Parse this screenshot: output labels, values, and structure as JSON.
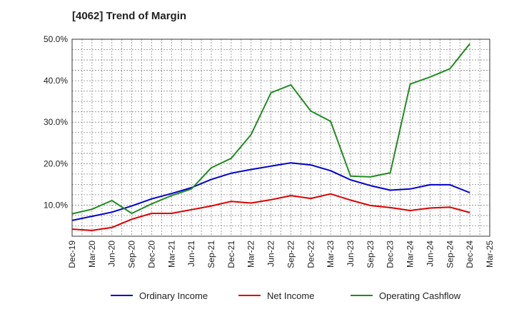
{
  "chart_data": {
    "type": "line",
    "title": "[4062]  Trend of Margin",
    "xlabel": "",
    "ylabel": "",
    "categories": [
      "Dec-19",
      "Mar-20",
      "Jun-20",
      "Sep-20",
      "Dec-20",
      "Mar-21",
      "Jun-21",
      "Sep-21",
      "Dec-21",
      "Mar-22",
      "Jun-22",
      "Sep-22",
      "Dec-22",
      "Mar-23",
      "Jun-23",
      "Sep-23",
      "Dec-23",
      "Mar-24",
      "Jun-24",
      "Sep-24",
      "Dec-24",
      "Mar-25"
    ],
    "ylim": [
      2.5,
      50
    ],
    "yticks": [
      10,
      20,
      30,
      40,
      50
    ],
    "ytick_labels": [
      "10.0%",
      "20.0%",
      "30.0%",
      "40.0%",
      "50.0%"
    ],
    "grid": true,
    "legend_position": "bottom",
    "series": [
      {
        "name": "Ordinary Income",
        "color": "#0000cc",
        "values": [
          6.3,
          7.3,
          8.3,
          9.8,
          11.5,
          12.8,
          14.2,
          16.2,
          17.7,
          18.6,
          19.4,
          20.2,
          19.7,
          18.3,
          16.1,
          14.7,
          13.6,
          13.9,
          14.9,
          14.9,
          13.0,
          null
        ]
      },
      {
        "name": "Net Income",
        "color": "#dd0000",
        "values": [
          4.2,
          3.9,
          4.6,
          6.6,
          8.0,
          8.0,
          8.9,
          9.8,
          10.9,
          10.5,
          11.3,
          12.3,
          11.6,
          12.7,
          11.2,
          9.9,
          9.4,
          8.7,
          9.3,
          9.5,
          8.2,
          null
        ]
      },
      {
        "name": "Operating Cashflow",
        "color": "#228b22",
        "values": [
          7.9,
          9.0,
          11.1,
          8.0,
          10.3,
          12.3,
          13.9,
          19.0,
          21.3,
          27.0,
          37.1,
          39.0,
          32.7,
          30.2,
          17.0,
          16.8,
          17.8,
          39.2,
          40.9,
          42.9,
          48.9,
          null
        ]
      }
    ]
  }
}
